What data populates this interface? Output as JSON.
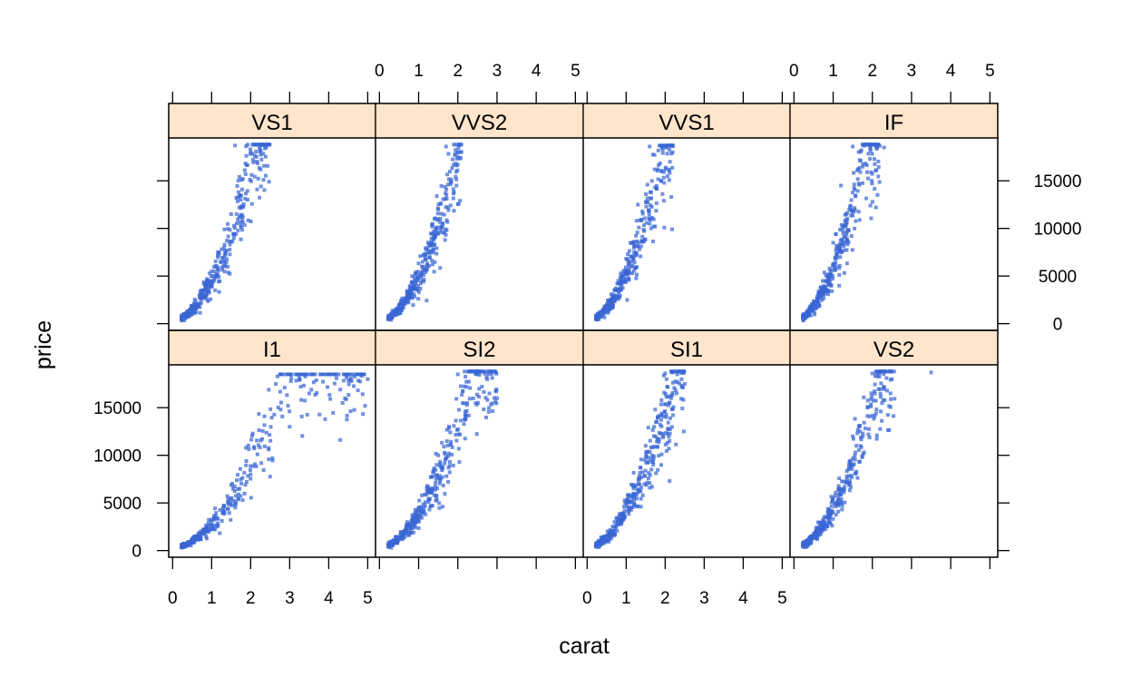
{
  "chart_data": {
    "type": "scatter",
    "xlabel": "carat",
    "ylabel": "price",
    "xlim": [
      -0.1,
      5.2
    ],
    "ylim": [
      -700,
      19500
    ],
    "x_ticks": [
      0,
      1,
      2,
      3,
      4,
      5
    ],
    "y_ticks": [
      0,
      5000,
      10000,
      15000
    ],
    "point_color": "#3a66d4",
    "strip_color": "#ffe5cc",
    "layout": {
      "columns": 4,
      "rows": 2
    },
    "panels": [
      {
        "label": "VS1",
        "row": "top",
        "col": 1,
        "max_carat": 2.6,
        "upper_carat": 2.5,
        "max_price": 18800,
        "points": [
          [
            0.3,
            350
          ],
          [
            0.5,
            1200
          ],
          [
            0.7,
            2800
          ],
          [
            1.0,
            5500
          ],
          [
            1.5,
            11500
          ],
          [
            1.6,
            18700
          ],
          [
            2.0,
            18000
          ],
          [
            2.4,
            18500
          ]
        ]
      },
      {
        "label": "VVS2",
        "row": "top",
        "col": 2,
        "max_carat": 2.2,
        "upper_carat": 2.1,
        "max_price": 18800,
        "points": [
          [
            0.3,
            400
          ],
          [
            0.5,
            1500
          ],
          [
            0.8,
            3200
          ],
          [
            1.1,
            6500
          ],
          [
            1.5,
            12000
          ],
          [
            1.7,
            18600
          ],
          [
            2.0,
            17500
          ]
        ]
      },
      {
        "label": "VVS1",
        "row": "top",
        "col": 3,
        "max_carat": 2.3,
        "upper_carat": 2.2,
        "max_price": 18700,
        "points": [
          [
            0.3,
            450
          ],
          [
            0.5,
            1600
          ],
          [
            0.7,
            3500
          ],
          [
            1.0,
            6800
          ],
          [
            1.3,
            12500
          ],
          [
            1.6,
            18600
          ],
          [
            2.1,
            16200
          ]
        ]
      },
      {
        "label": "IF",
        "row": "top",
        "col": 4,
        "max_carat": 2.3,
        "upper_carat": 2.2,
        "max_price": 18800,
        "points": [
          [
            0.25,
            500
          ],
          [
            0.5,
            1800
          ],
          [
            0.8,
            4500
          ],
          [
            1.0,
            8500
          ],
          [
            1.2,
            14500
          ],
          [
            1.5,
            18600
          ],
          [
            2.3,
            18500
          ]
        ]
      },
      {
        "label": "I1",
        "row": "bottom",
        "col": 1,
        "max_carat": 5.0,
        "upper_carat": 5.0,
        "max_price": 18500,
        "points": [
          [
            0.3,
            350
          ],
          [
            1.0,
            3000
          ],
          [
            2.0,
            8000
          ],
          [
            3.0,
            13000
          ],
          [
            3.5,
            16500
          ],
          [
            4.5,
            18500
          ],
          [
            5.0,
            18000
          ]
        ]
      },
      {
        "label": "SI2",
        "row": "bottom",
        "col": 2,
        "max_carat": 3.0,
        "upper_carat": 3.0,
        "max_price": 18800,
        "points": [
          [
            0.3,
            300
          ],
          [
            0.7,
            2500
          ],
          [
            1.0,
            4500
          ],
          [
            1.5,
            10000
          ],
          [
            2.0,
            18500
          ],
          [
            2.5,
            18500
          ],
          [
            3.0,
            16000
          ]
        ]
      },
      {
        "label": "SI1",
        "row": "bottom",
        "col": 3,
        "max_carat": 2.6,
        "upper_carat": 2.5,
        "max_price": 18800,
        "points": [
          [
            0.3,
            350
          ],
          [
            0.7,
            2500
          ],
          [
            1.0,
            5000
          ],
          [
            1.5,
            11000
          ],
          [
            2.0,
            18600
          ],
          [
            2.5,
            17500
          ]
        ]
      },
      {
        "label": "VS2",
        "row": "bottom",
        "col": 4,
        "max_carat": 3.5,
        "upper_carat": 2.6,
        "max_price": 18800,
        "points": [
          [
            0.3,
            350
          ],
          [
            0.7,
            2600
          ],
          [
            1.0,
            5500
          ],
          [
            1.5,
            12000
          ],
          [
            2.0,
            18600
          ],
          [
            2.5,
            18000
          ],
          [
            3.5,
            18700
          ]
        ]
      }
    ]
  }
}
